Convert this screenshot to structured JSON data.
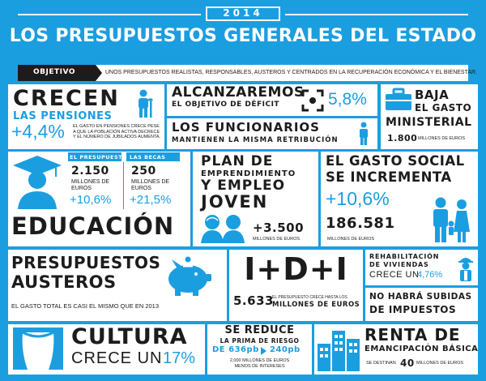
{
  "header": {
    "year": "2014",
    "title": "LOS PRESUPUESTOS GENERALES DEL ESTADO"
  },
  "objetivo": {
    "label": "OBJETIVO",
    "text": "UNOS PRESUPUESTOS REALISTAS, RESPONSABLES, AUSTEROS Y CENTRADOS EN LA RECUPERACIÓN ECONÓMICA Y EL BIENESTAR."
  },
  "pensiones": {
    "title": "CRECEN",
    "subtitle": "LAS PENSIONES",
    "value": "+4,4%",
    "note": "EL GASTO EN PENSIONES CRECE PESE A QUE LA POBLACIÓN ACTIVA DECRECE Y EL NÚMERO DE JUBILADOS AUMENTA."
  },
  "deficit": {
    "title": "ALCANZAREMOS",
    "subtitle": "EL OBJETIVO DE DÉFICIT",
    "value": "5,8%"
  },
  "funcionarios": {
    "title": "LOS FUNCIONARIOS",
    "subtitle": "MANTIENEN LA MISMA RETRIBUCIÓN"
  },
  "gasto_ministerial": {
    "line1": "BAJA",
    "line2": "EL GASTO",
    "line3": "MINISTERIAL",
    "value": "1.800",
    "unit": "MILLONES DE EUROS"
  },
  "educacion": {
    "title": "EDUCACIÓN",
    "presupuesto_label": "EL PRESUPUESTO",
    "presupuesto_value": "2.150",
    "presupuesto_unit": "MILLONES DE EUROS",
    "presupuesto_change": "+10,6%",
    "becas_label": "LAS BECAS",
    "becas_value": "250",
    "becas_unit": "MILLONES DE EUROS",
    "becas_change": "+21,5%"
  },
  "emprendimiento": {
    "line1": "PLAN DE",
    "line2": "EMPRENDIMIENTO",
    "line3": "Y EMPLEO",
    "line4": "JOVEN",
    "value": "+3.500",
    "unit": "MILLONES DE EUROS"
  },
  "gasto_social": {
    "line1": "EL GASTO SOCIAL",
    "line2": "SE INCREMENTA",
    "change": "+10,6%",
    "value": "186.581",
    "unit": "MILLONES DE EUROS"
  },
  "austeros": {
    "line1": "PRESUPUESTOS",
    "line2": "AUSTEROS",
    "note": "EL GASTO TOTAL ES CASI EL MISMO QUE EN 2013"
  },
  "idi": {
    "title": "I+D+I",
    "value": "5.633",
    "note": "EL PRESUPUESTO CRECE HASTA LOS",
    "unit": "MILLONES DE EUROS"
  },
  "viviendas": {
    "line1": "REHABILITACIÓN",
    "line2": "DE VIVIENDAS",
    "line3": "CRECE UN",
    "value": "4,76%"
  },
  "impuestos": {
    "line1": "NO HABRÁ SUBIDAS",
    "line2": "DE IMPUESTOS"
  },
  "cultura": {
    "title": "CULTURA",
    "line2": "CRECE UN",
    "value": "17%"
  },
  "prima": {
    "line1": "SE REDUCE",
    "line2": "LA PRIMA DE RIESGO",
    "line3_from": "DE 636pb",
    "line3_to": "240pb",
    "note1": "2.000 MILLONES DE EUROS",
    "note2": "MENOS DE INTERESES"
  },
  "renta": {
    "line1": "RENTA DE",
    "line2": "EMANCIPACIÓN BÁSICA",
    "prefix": "SE DESTINAN",
    "value": "40",
    "unit": "MILLONES DE EUROS"
  },
  "colors": {
    "accent": "#1b9ee0",
    "dark": "#1c1c1c",
    "panel": "#ffffff"
  }
}
